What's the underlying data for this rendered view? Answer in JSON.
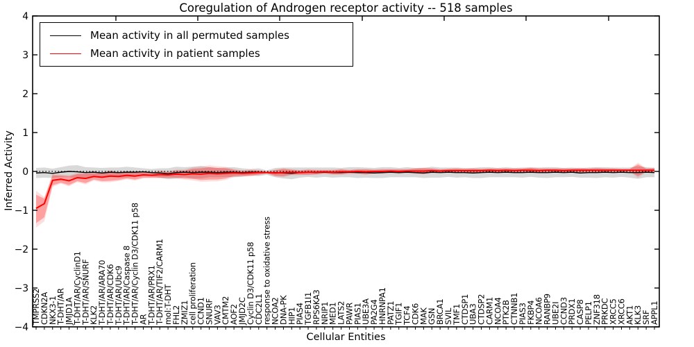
{
  "chart_data": {
    "type": "line",
    "title": "Coregulation of Androgen receptor activity -- 518 samples",
    "xlabel": "Cellular Entities",
    "ylabel": "Inferred Activity",
    "ylim": [
      -4,
      4
    ],
    "yticks": [
      4,
      3,
      2,
      1,
      0,
      -1,
      -2,
      -3,
      -4
    ],
    "grid": false,
    "legend_position": "upper left",
    "zero_reference_line": {
      "value": 0,
      "style": "dotted",
      "color": "#000000"
    },
    "categories": [
      "TMPRSS2",
      "CDKN2A",
      "NKX3-1",
      "T-DHT/AR",
      "JMJD1A",
      "T-DHT/AR/CyclinD1",
      "T-DHT/AR/SNURF",
      "KLK2",
      "T-DHT/AR/ARA70",
      "T-DHT/AR/CDK6",
      "T-DHT/AR/Ubc9",
      "T-DHT/AR/Caspase 8",
      "T-DHT/AR/Cyclin D3/CDK11 p58",
      "AR",
      "T-DHT/AR/PRX1",
      "T-DHT/AR/TIF2/CARM1",
      "mol:T-DHT",
      "FHL2",
      "ZMIZ1",
      "cell proliferation",
      "CCND1",
      "SNURF",
      "VAV3",
      "CMTM2",
      "AOF2",
      "JMJD2C",
      "Cyclin D3/CDK11 p58",
      "CDC2L1",
      "response to oxidative stress",
      "NCOA2",
      "DNA-PK",
      "HIP1",
      "PIAS4",
      "TGFB1I1",
      "RPS6KA3",
      "NRIP1",
      "MED1",
      "LATS2",
      "PAWR",
      "PIAS1",
      "UBE3A",
      "PA2G4",
      "HNRNPA1",
      "PATZ1",
      "TGIF1",
      "TCF4",
      "CDK6",
      "MAK",
      "GSN",
      "BRCA1",
      "SVIL",
      "TMF1",
      "CTDSP1",
      "UBA3",
      "CTDSP2",
      "CARM1",
      "NCOA4",
      "PTK2B",
      "CTNNB1",
      "PIAS3",
      "FKBP4",
      "NCOA6",
      "RANBP9",
      "UBE2I",
      "CCND3",
      "PRDX1",
      "CASP8",
      "PELP1",
      "ZNF318",
      "PRKDC",
      "XRCC5",
      "XRCC6",
      "AKT1",
      "KLK3",
      "SRF",
      "APPL1"
    ],
    "series": [
      {
        "name": "Mean activity in all permuted samples",
        "color": "#000000",
        "band_color": "rgba(0,0,0,0.15)",
        "values": [
          -0.04,
          -0.03,
          -0.05,
          -0.02,
          0.0,
          -0.01,
          -0.03,
          -0.02,
          -0.04,
          -0.02,
          -0.03,
          -0.02,
          -0.02,
          -0.01,
          -0.03,
          -0.04,
          -0.06,
          -0.03,
          -0.02,
          -0.03,
          -0.02,
          -0.02,
          -0.03,
          -0.02,
          -0.02,
          -0.03,
          -0.02,
          -0.02,
          -0.03,
          -0.03,
          -0.04,
          -0.05,
          -0.03,
          -0.02,
          -0.03,
          -0.02,
          -0.03,
          -0.03,
          -0.02,
          -0.03,
          -0.03,
          -0.04,
          -0.03,
          -0.02,
          -0.03,
          -0.02,
          -0.03,
          -0.04,
          -0.02,
          -0.03,
          -0.02,
          -0.03,
          -0.03,
          -0.04,
          -0.03,
          -0.02,
          -0.03,
          -0.02,
          -0.03,
          -0.03,
          -0.02,
          -0.03,
          -0.03,
          -0.02,
          -0.03,
          -0.02,
          -0.04,
          -0.03,
          -0.03,
          -0.02,
          -0.03,
          -0.02,
          -0.03,
          -0.03,
          -0.02,
          -0.03
        ],
        "band_upper": [
          0.09,
          0.1,
          0.07,
          0.11,
          0.15,
          0.16,
          0.11,
          0.1,
          0.09,
          0.1,
          0.1,
          0.12,
          0.1,
          0.08,
          0.06,
          0.08,
          0.08,
          0.12,
          0.11,
          0.12,
          0.14,
          0.11,
          0.09,
          0.1,
          0.11,
          0.08,
          0.06,
          0.08,
          0.03,
          0.09,
          0.1,
          0.1,
          0.1,
          0.1,
          0.1,
          0.1,
          0.1,
          0.09,
          0.11,
          0.11,
          0.1,
          0.09,
          0.11,
          0.11,
          0.09,
          0.11,
          0.09,
          0.09,
          0.12,
          0.1,
          0.1,
          0.1,
          0.09,
          0.09,
          0.11,
          0.11,
          0.09,
          0.11,
          0.09,
          0.1,
          0.1,
          0.1,
          0.11,
          0.11,
          0.09,
          0.1,
          0.08,
          0.1,
          0.11,
          0.11,
          0.1,
          0.1,
          0.1,
          0.13,
          0.11,
          0.09
        ],
        "band_lower": [
          -0.17,
          -0.16,
          -0.17,
          -0.15,
          -0.15,
          -0.18,
          -0.17,
          -0.14,
          -0.17,
          -0.14,
          -0.16,
          -0.16,
          -0.14,
          -0.1,
          -0.12,
          -0.16,
          -0.2,
          -0.18,
          -0.15,
          -0.18,
          -0.18,
          -0.15,
          -0.15,
          -0.14,
          -0.15,
          -0.14,
          -0.1,
          -0.12,
          -0.09,
          -0.15,
          -0.18,
          -0.2,
          -0.16,
          -0.14,
          -0.16,
          -0.14,
          -0.16,
          -0.15,
          -0.15,
          -0.17,
          -0.16,
          -0.17,
          -0.17,
          -0.15,
          -0.15,
          -0.15,
          -0.15,
          -0.17,
          -0.16,
          -0.16,
          -0.14,
          -0.16,
          -0.15,
          -0.17,
          -0.17,
          -0.15,
          -0.15,
          -0.15,
          -0.15,
          -0.16,
          -0.14,
          -0.16,
          -0.17,
          -0.15,
          -0.15,
          -0.14,
          -0.16,
          -0.16,
          -0.17,
          -0.15,
          -0.16,
          -0.14,
          -0.16,
          -0.19,
          -0.15,
          -0.15
        ]
      },
      {
        "name": "Mean activity in patient samples",
        "color": "#ff0000",
        "band_color": "rgba(255,0,0,0.28)",
        "band_outer_color": "rgba(255,0,0,0.13)",
        "values": [
          -0.95,
          -0.83,
          -0.23,
          -0.2,
          -0.24,
          -0.16,
          -0.18,
          -0.13,
          -0.15,
          -0.12,
          -0.13,
          -0.1,
          -0.12,
          -0.09,
          -0.1,
          -0.08,
          -0.09,
          -0.07,
          -0.08,
          -0.06,
          -0.07,
          -0.05,
          -0.06,
          -0.05,
          -0.04,
          -0.05,
          -0.04,
          -0.03,
          -0.03,
          -0.04,
          -0.03,
          -0.02,
          -0.03,
          -0.02,
          -0.02,
          -0.01,
          -0.02,
          -0.01,
          -0.01,
          0.0,
          -0.01,
          0.0,
          0.0,
          0.01,
          0.0,
          0.01,
          0.01,
          0.01,
          0.02,
          0.01,
          0.02,
          0.02,
          0.02,
          0.02,
          0.02,
          0.03,
          0.02,
          0.03,
          0.02,
          0.03,
          0.03,
          0.02,
          0.03,
          0.03,
          0.02,
          0.03,
          0.03,
          0.03,
          0.03,
          0.03,
          0.03,
          0.03,
          0.03,
          0.03,
          0.03,
          0.03
        ],
        "band_upper": [
          -0.6,
          -0.7,
          -0.1,
          -0.11,
          -0.13,
          -0.07,
          -0.06,
          -0.05,
          -0.05,
          0.0,
          -0.04,
          -0.02,
          -0.03,
          -0.02,
          -0.04,
          0.0,
          -0.02,
          0.02,
          0.02,
          0.07,
          0.08,
          0.11,
          0.09,
          0.08,
          0.04,
          0.01,
          0.03,
          0.02,
          -0.01,
          0.03,
          0.06,
          0.04,
          0.02,
          0.04,
          0.03,
          0.03,
          0.03,
          0.05,
          0.03,
          0.05,
          0.05,
          0.04,
          0.05,
          0.05,
          0.05,
          0.05,
          0.07,
          0.08,
          0.07,
          0.05,
          0.06,
          0.07,
          0.06,
          0.07,
          0.06,
          0.07,
          0.07,
          0.07,
          0.07,
          0.07,
          0.09,
          0.07,
          0.07,
          0.07,
          0.07,
          0.07,
          0.08,
          0.07,
          0.08,
          0.07,
          0.07,
          0.06,
          0.06,
          0.18,
          0.07,
          0.08
        ],
        "band_lower": [
          -1.33,
          -1.18,
          -0.36,
          -0.29,
          -0.35,
          -0.25,
          -0.3,
          -0.21,
          -0.25,
          -0.24,
          -0.22,
          -0.18,
          -0.21,
          -0.16,
          -0.16,
          -0.16,
          -0.16,
          -0.16,
          -0.18,
          -0.19,
          -0.22,
          -0.21,
          -0.21,
          -0.18,
          -0.12,
          -0.11,
          -0.11,
          -0.08,
          -0.05,
          -0.11,
          -0.12,
          -0.08,
          -0.08,
          -0.08,
          -0.07,
          -0.05,
          -0.07,
          -0.07,
          -0.05,
          -0.05,
          -0.07,
          -0.04,
          -0.05,
          -0.03,
          -0.05,
          -0.03,
          -0.05,
          -0.06,
          -0.03,
          -0.03,
          -0.02,
          -0.03,
          -0.02,
          -0.03,
          -0.02,
          -0.01,
          -0.03,
          -0.01,
          -0.03,
          -0.01,
          -0.03,
          -0.03,
          -0.01,
          -0.01,
          -0.03,
          -0.01,
          -0.02,
          -0.01,
          -0.02,
          -0.01,
          -0.01,
          0.0,
          0.0,
          -0.12,
          -0.01,
          -0.02
        ]
      }
    ]
  }
}
